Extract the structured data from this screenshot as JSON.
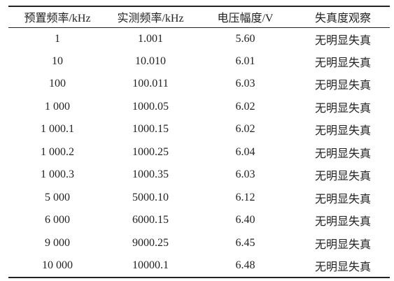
{
  "table": {
    "header": [
      "预置频率/kHz",
      "实测频率/kHz",
      "电压幅度/V",
      "失真度观察"
    ],
    "rows": [
      [
        "1",
        "1.001",
        "5.60",
        "无明显失真"
      ],
      [
        "10",
        "10.010",
        "6.01",
        "无明显失真"
      ],
      [
        "100",
        "100.011",
        "6.03",
        "无明显失真"
      ],
      [
        "1 000",
        "1000.05",
        "6.02",
        "无明显失真"
      ],
      [
        "1 000.1",
        "1000.15",
        "6.02",
        "无明显失真"
      ],
      [
        "1 000.2",
        "1000.25",
        "6.04",
        "无明显失真"
      ],
      [
        "1 000.3",
        "1000.35",
        "6.03",
        "无明显失真"
      ],
      [
        "5 000",
        "5000.10",
        "6.12",
        "无明显失真"
      ],
      [
        "6 000",
        "6000.15",
        "6.40",
        "无明显失真"
      ],
      [
        "9 000",
        "9000.25",
        "6.45",
        "无明显失真"
      ],
      [
        "10 000",
        "10000.1",
        "6.48",
        "无明显失真"
      ]
    ]
  }
}
